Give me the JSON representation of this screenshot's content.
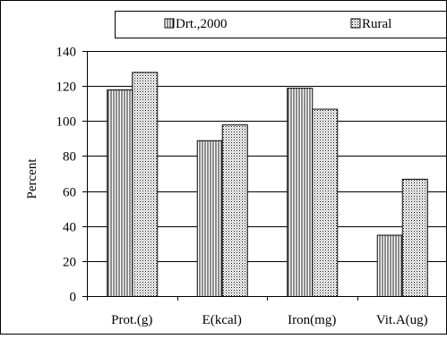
{
  "chart_data": {
    "type": "bar",
    "categories": [
      "Prot.(g)",
      "E(kcal)",
      "Iron(mg)",
      "Vit.A(ug)"
    ],
    "series": [
      {
        "name": "Drt.,2000",
        "values": [
          118,
          89,
          119,
          35
        ],
        "pattern": "vertical-lines"
      },
      {
        "name": "Rural",
        "values": [
          128,
          98,
          107,
          67
        ],
        "pattern": "dots"
      }
    ],
    "ylabel": "Percent",
    "ylim": [
      0,
      140
    ],
    "yticks": [
      0,
      20,
      40,
      60,
      80,
      100,
      120,
      140
    ],
    "grid": true,
    "legend": "top"
  }
}
